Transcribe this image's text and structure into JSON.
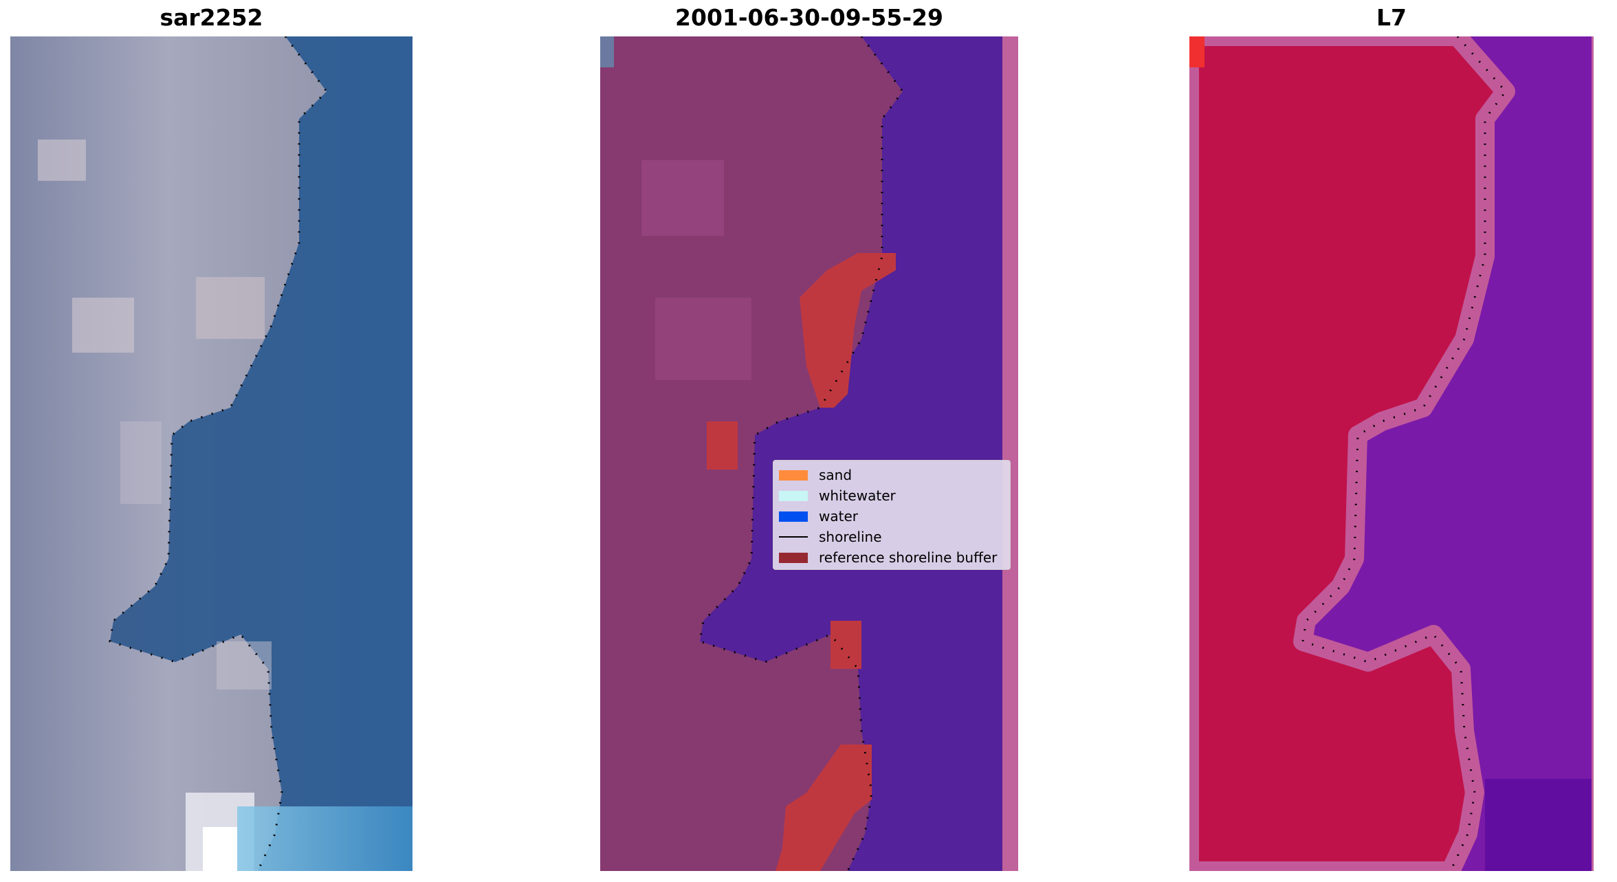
{
  "panels": [
    {
      "title": "sar2252",
      "kind": "rgb-image"
    },
    {
      "title": "2001-06-30-09-55-29",
      "kind": "classified-image"
    },
    {
      "title": "L7",
      "kind": "mndwi-image"
    }
  ],
  "legend": {
    "items": [
      {
        "label": "sand",
        "color": "#ff8c3c",
        "type": "patch"
      },
      {
        "label": "whitewater",
        "color": "#c8f5f5",
        "type": "patch"
      },
      {
        "label": "water",
        "color": "#0050f0",
        "type": "patch"
      },
      {
        "label": "shoreline",
        "color": "#000000",
        "type": "line"
      },
      {
        "label": "reference shoreline buffer",
        "color": "#962832",
        "type": "patch"
      }
    ]
  },
  "colors": {
    "sar_land": "#8a8ea8",
    "sar_water": "#3a6a9c",
    "class_land": "#8a3a6e",
    "class_water": "#54229a",
    "buffer": "#c0383f",
    "mndwi_land": "#c01040",
    "mndwi_water": "#7a1aa8"
  }
}
